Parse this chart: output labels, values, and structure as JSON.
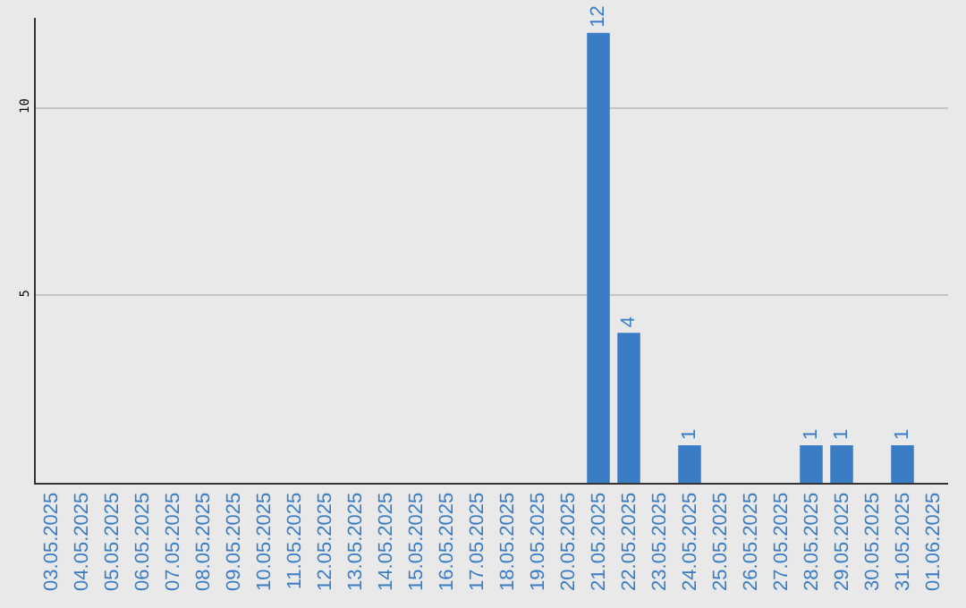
{
  "chart_data": {
    "type": "bar",
    "categories": [
      "03.05.2025",
      "04.05.2025",
      "05.05.2025",
      "06.05.2025",
      "07.05.2025",
      "08.05.2025",
      "09.05.2025",
      "10.05.2025",
      "11.05.2025",
      "12.05.2025",
      "13.05.2025",
      "14.05.2025",
      "15.05.2025",
      "16.05.2025",
      "17.05.2025",
      "18.05.2025",
      "19.05.2025",
      "20.05.2025",
      "21.05.2025",
      "22.05.2025",
      "23.05.2025",
      "24.05.2025",
      "25.05.2025",
      "26.05.2025",
      "27.05.2025",
      "28.05.2025",
      "29.05.2025",
      "30.05.2025",
      "31.05.2025",
      "01.06.2025"
    ],
    "values": [
      0,
      0,
      0,
      0,
      0,
      0,
      0,
      0,
      0,
      0,
      0,
      0,
      0,
      0,
      0,
      0,
      0,
      0,
      12,
      4,
      0,
      1,
      0,
      0,
      0,
      1,
      1,
      0,
      1,
      0
    ],
    "value_labels": [
      null,
      null,
      null,
      null,
      null,
      null,
      null,
      null,
      null,
      null,
      null,
      null,
      null,
      null,
      null,
      null,
      null,
      null,
      "12",
      "4",
      null,
      "1",
      null,
      null,
      null,
      "1",
      "1",
      null,
      "1",
      null
    ],
    "color": "#3a7dc4",
    "ylim": [
      0,
      12.4
    ],
    "yticks": [
      5,
      10
    ],
    "grid": "y"
  }
}
